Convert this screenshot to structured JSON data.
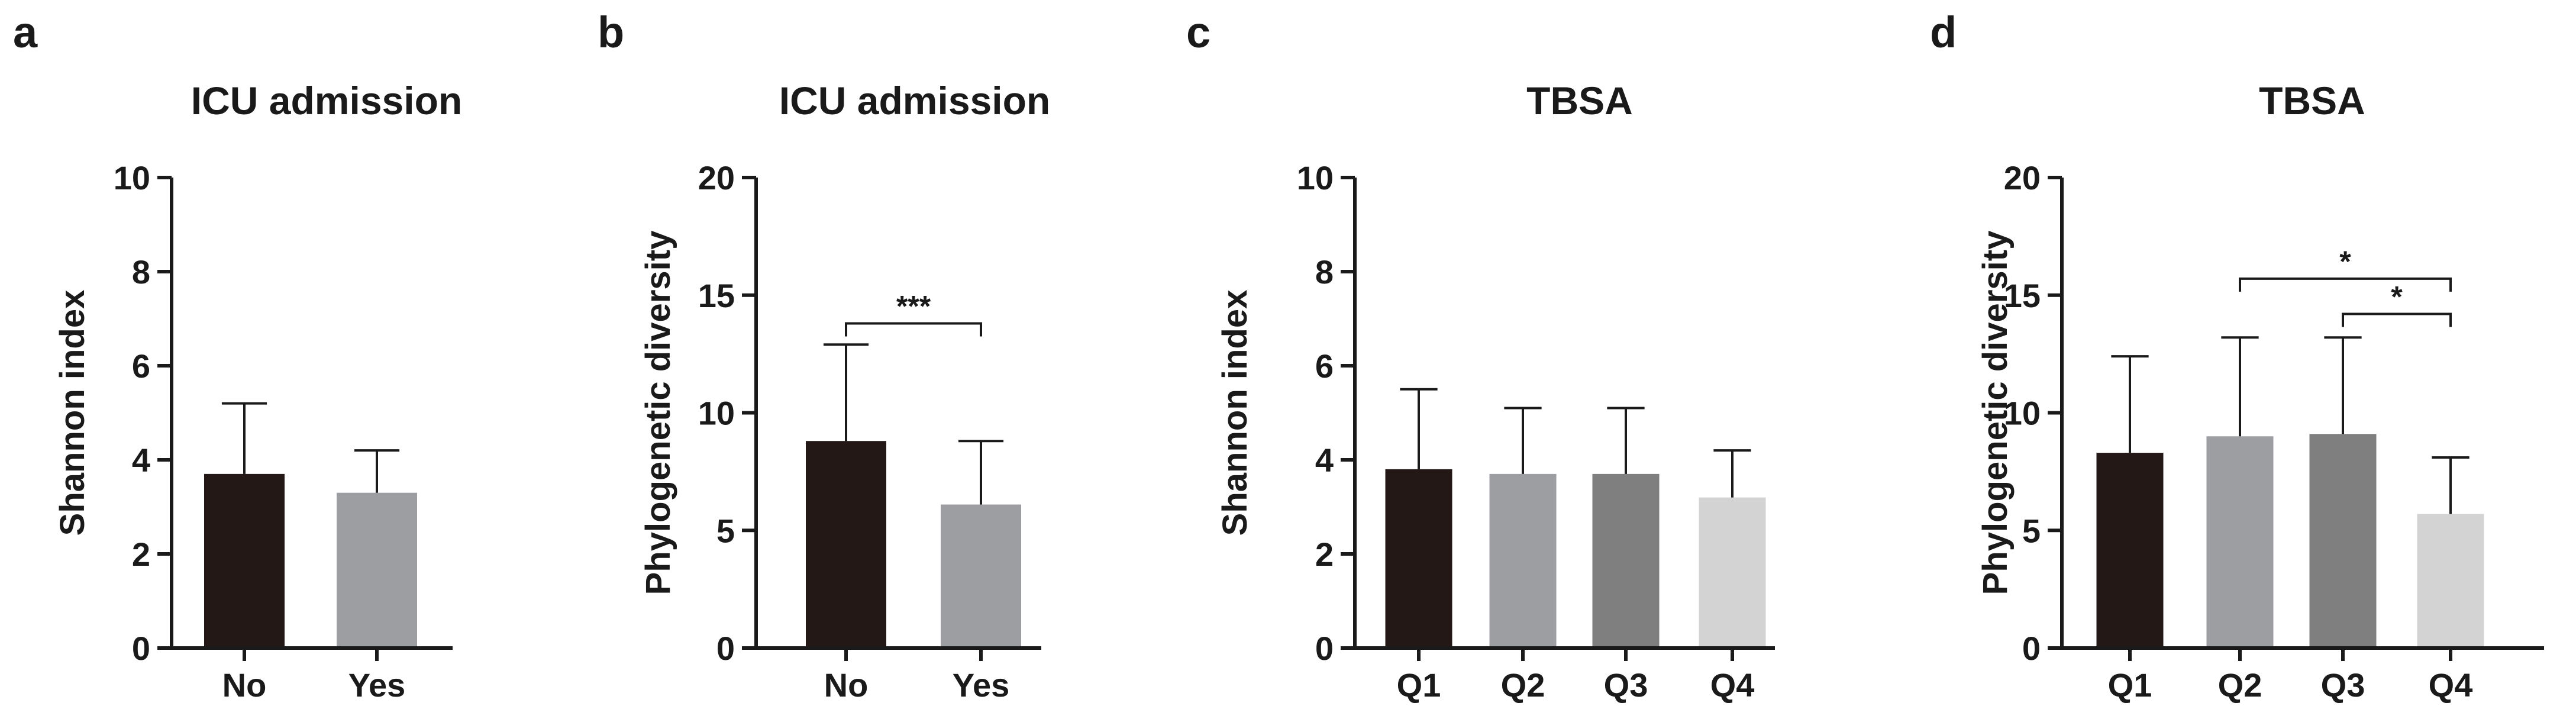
{
  "chart_data": [
    {
      "panel_label": "a",
      "type": "bar",
      "title": "ICU admission",
      "xlabel": "",
      "ylabel": "Shannon index",
      "ylim": [
        0,
        10
      ],
      "yticks": [
        0,
        2,
        4,
        6,
        8,
        10
      ],
      "categories": [
        "No",
        "Yes"
      ],
      "values": [
        3.7,
        3.3
      ],
      "errors": [
        1.5,
        0.9
      ],
      "colors": [
        "#231815",
        "#9d9ea2"
      ],
      "significance": []
    },
    {
      "panel_label": "b",
      "type": "bar",
      "title": "ICU admission",
      "xlabel": "",
      "ylabel": "Phylogenetic diversity",
      "ylim": [
        0,
        20
      ],
      "yticks": [
        0,
        5,
        10,
        15,
        20
      ],
      "categories": [
        "No",
        "Yes"
      ],
      "values": [
        8.8,
        6.1
      ],
      "errors": [
        4.1,
        2.7
      ],
      "colors": [
        "#231815",
        "#9d9ea2"
      ],
      "significance": [
        {
          "from": 0,
          "to": 1,
          "y": 13.8,
          "label": "***"
        }
      ]
    },
    {
      "panel_label": "c",
      "type": "bar",
      "title": "TBSA",
      "xlabel": "",
      "ylabel": "Shannon index",
      "ylim": [
        0,
        10
      ],
      "yticks": [
        0,
        2,
        4,
        6,
        8,
        10
      ],
      "categories": [
        "Q1",
        "Q2",
        "Q3",
        "Q4"
      ],
      "values": [
        3.8,
        3.7,
        3.7,
        3.2
      ],
      "errors": [
        1.7,
        1.4,
        1.4,
        1.0
      ],
      "colors": [
        "#231815",
        "#9d9ea2",
        "#7f7f7f",
        "#d3d3d3"
      ],
      "significance": []
    },
    {
      "panel_label": "d",
      "type": "bar",
      "title": "TBSA",
      "xlabel": "",
      "ylabel": "Phylogenetic diversity",
      "ylim": [
        0,
        20
      ],
      "yticks": [
        0,
        5,
        10,
        15,
        20
      ],
      "categories": [
        "Q1",
        "Q2",
        "Q3",
        "Q4"
      ],
      "values": [
        8.3,
        9.0,
        9.1,
        5.7
      ],
      "errors": [
        4.1,
        4.2,
        4.1,
        2.4
      ],
      "colors": [
        "#231815",
        "#9d9ea2",
        "#7f7f7f",
        "#d3d3d3"
      ],
      "significance": [
        {
          "from": 1,
          "to": 3,
          "y": 15.7,
          "label": "*"
        },
        {
          "from": 2,
          "to": 3,
          "y": 14.2,
          "label": "*"
        }
      ]
    }
  ]
}
